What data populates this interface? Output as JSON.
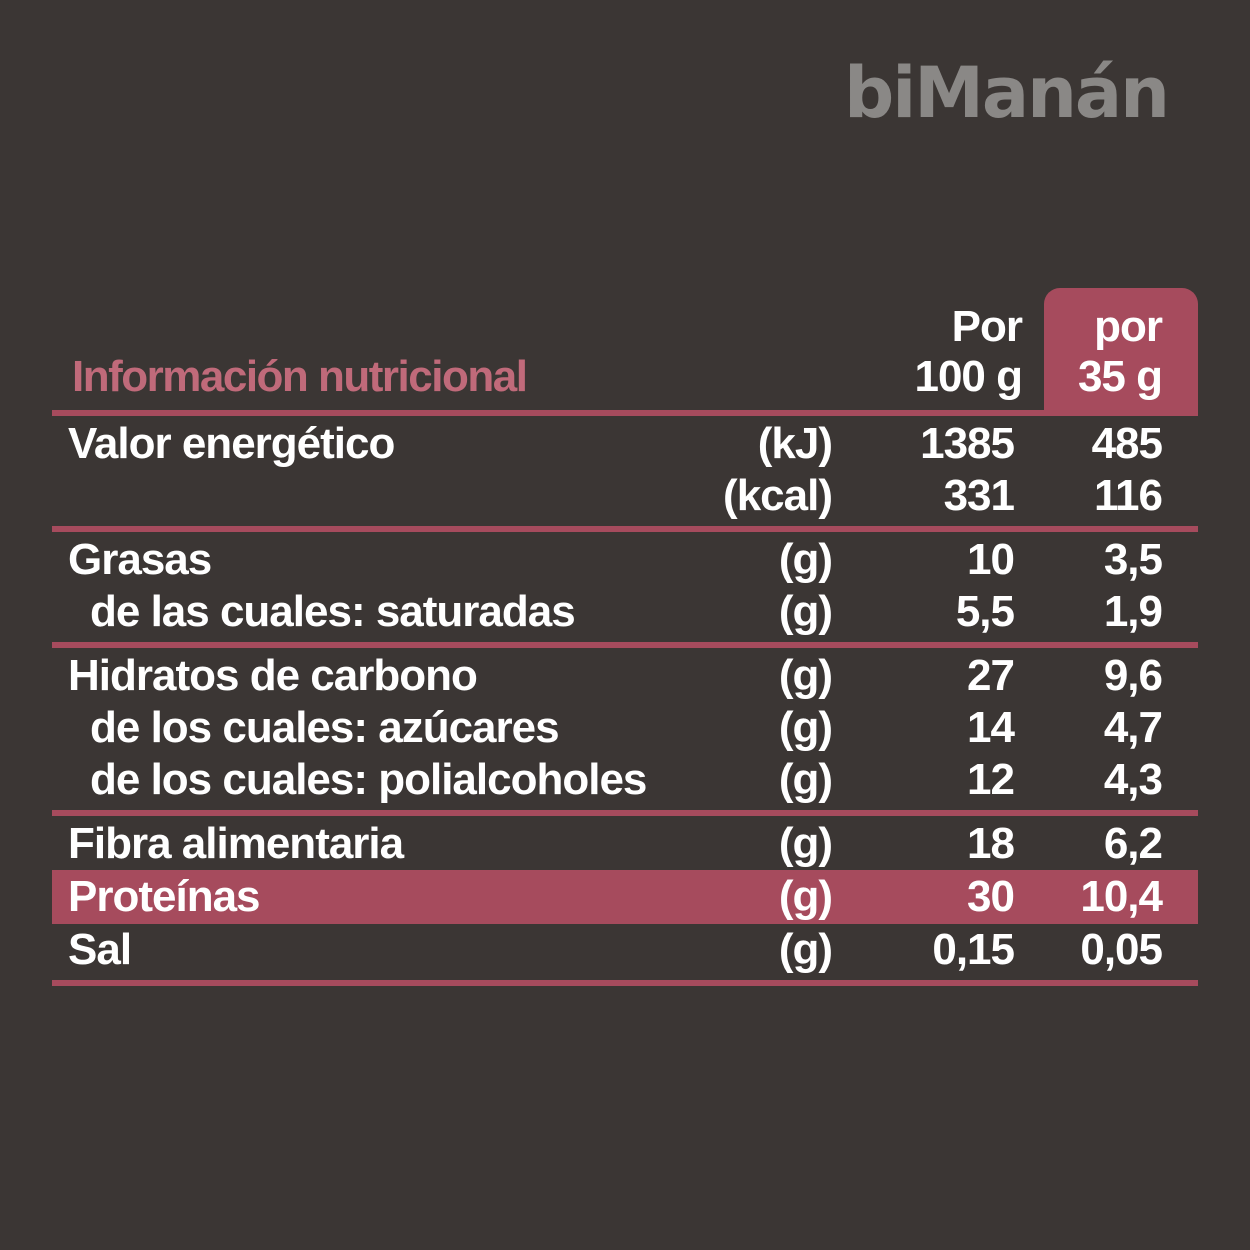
{
  "brand": "biManán",
  "table": {
    "title": "Información nutricional",
    "col100": [
      "Por",
      "100 g"
    ],
    "col35": [
      "por",
      "35 g"
    ],
    "groups": [
      [
        {
          "label": "Valor energético",
          "unit": "(kJ)",
          "v100": "1385",
          "v35": "485"
        },
        {
          "label": "",
          "unit": "(kcal)",
          "v100": "331",
          "v35": "116"
        }
      ],
      [
        {
          "label": "Grasas",
          "unit": "(g)",
          "v100": "10",
          "v35": "3,5"
        },
        {
          "label": "de las cuales: saturadas",
          "unit": "(g)",
          "v100": "5,5",
          "v35": "1,9"
        }
      ],
      [
        {
          "label": "Hidratos de carbono",
          "unit": "(g)",
          "v100": "27",
          "v35": "9,6"
        },
        {
          "label": "de los cuales: azúcares",
          "unit": "(g)",
          "v100": "14",
          "v35": "4,7"
        },
        {
          "label": "de los cuales: polialcoholes",
          "unit": "(g)",
          "v100": "12",
          "v35": "4,3"
        }
      ],
      [
        {
          "label": "Fibra alimentaria",
          "unit": "(g)",
          "v100": "18",
          "v35": "6,2"
        },
        {
          "label": "Proteínas",
          "unit": "(g)",
          "v100": "30",
          "v35": "10,4"
        },
        {
          "label": "Sal",
          "unit": "(g)",
          "v100": "0,15",
          "v35": "0,05"
        }
      ]
    ]
  },
  "colors": {
    "background": "#3b3634",
    "accent": "#a64b5d",
    "title": "#c06a7a",
    "brand": "#8a8886",
    "text": "#ffffff"
  }
}
